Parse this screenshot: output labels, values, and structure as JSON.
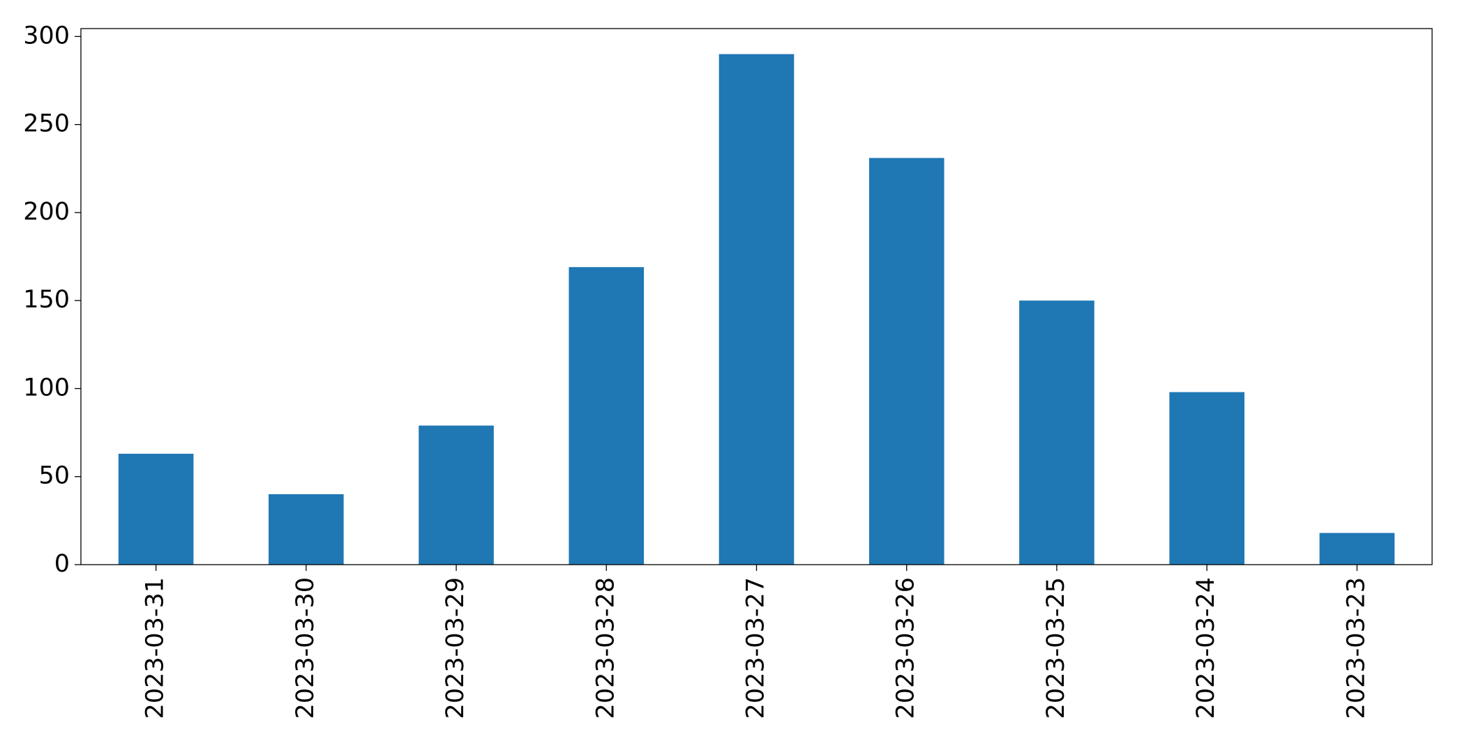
{
  "chart_data": {
    "type": "bar",
    "categories": [
      "2023-03-31",
      "2023-03-30",
      "2023-03-29",
      "2023-03-28",
      "2023-03-27",
      "2023-03-26",
      "2023-03-25",
      "2023-03-24",
      "2023-03-23"
    ],
    "values": [
      63,
      40,
      79,
      169,
      290,
      231,
      150,
      98,
      18
    ],
    "color": "#1f77b4",
    "ylim": [
      0,
      304.5
    ],
    "yticks": [
      0,
      50,
      100,
      150,
      200,
      250,
      300
    ],
    "grid": false
  }
}
